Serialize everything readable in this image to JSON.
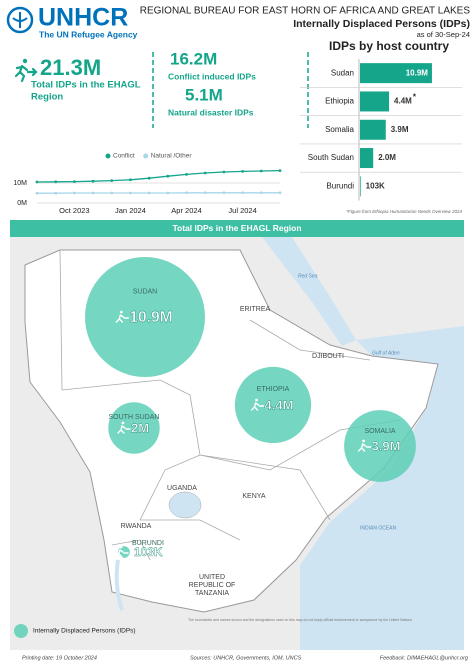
{
  "header": {
    "org": "UNHCR",
    "tagline": "The UN Refugee Agency",
    "bureau": "REGIONAL BUREAU FOR EAST HORN OF AFRICA AND GREAT LAKES",
    "title": "Internally Displaced Persons (IDPs)",
    "date": "as of 30-Sep-24"
  },
  "kpis": {
    "total": {
      "value": "21.3M",
      "label_lines": [
        "Total IDPs in  the EHAGL",
        "Region"
      ]
    },
    "conflict": {
      "value": "16.2M",
      "label": "Conflict induced IDPs"
    },
    "natural": {
      "value": "5.1M",
      "label": "Natural disaster IDPs"
    }
  },
  "chart_data": [
    {
      "type": "line",
      "categories": [
        null,
        null,
        "Oct 2023",
        null,
        null,
        "Jan 2024",
        null,
        null,
        "Apr 2024",
        null,
        null,
        "Jul 2024",
        null,
        null
      ],
      "series": [
        {
          "name": "Conflict",
          "color": "#14a58a",
          "values": [
            10.5,
            10.6,
            10.7,
            10.9,
            11.2,
            11.6,
            12.4,
            13.4,
            14.3,
            15.0,
            15.5,
            15.8,
            16.0,
            16.2
          ]
        },
        {
          "name": "Natural /Other",
          "color": "#a9d6e8",
          "values": [
            4.9,
            4.9,
            5.0,
            5.0,
            5.0,
            5.0,
            5.0,
            5.0,
            5.1,
            5.1,
            5.1,
            5.1,
            5.1,
            5.1
          ]
        }
      ],
      "ylim": [
        0,
        20
      ],
      "yticks": [
        {
          "value": 0,
          "label": "0M"
        },
        {
          "value": 10,
          "label": "10M"
        }
      ],
      "grid": true,
      "legend": "top"
    },
    {
      "type": "hbar",
      "title": "IDPs by host country",
      "categories": [
        "Sudan",
        "Ethiopia",
        "Somalia",
        "South Sudan",
        "Burundi"
      ],
      "values": [
        10.9,
        4.4,
        3.9,
        2.0,
        0.103
      ],
      "value_labels": [
        "10.9M",
        "4.4M",
        "3.9M",
        "2.0M",
        "103K"
      ],
      "color": "#14a58a",
      "footnote_marker": "*",
      "footnote": "*Figure from Ethiopia Humanitarian Needs Overview 2024"
    }
  ],
  "map": {
    "title": "Total IDPs in the EHAGL Region",
    "bubbles": [
      {
        "name": "SUDAN",
        "value": 10.9,
        "value_label": "10.9M"
      },
      {
        "name": "SOUTH SUDAN",
        "value": 2,
        "value_label": "2M"
      },
      {
        "name": "ETHIOPIA",
        "value": 4.4,
        "value_label": "4.4M"
      },
      {
        "name": "SOMALIA",
        "value": 3.9,
        "value_label": "3.9M"
      },
      {
        "name": "BURUNDI",
        "value": 0.103,
        "value_label": "103K"
      }
    ],
    "places": {
      "eritrea": "ERITREA",
      "djibouti": "DJIBOUTI",
      "uganda": "UGANDA",
      "kenya": "KENYA",
      "rwanda": "RWANDA",
      "tanzania_lines": [
        "UNITED",
        "REPUBLIC OF",
        "TANZANIA"
      ],
      "red_sea": "Red Sea",
      "gulf": "Gulf of Aden",
      "ocean": "INDIAN OCEAN"
    },
    "legend": "Internally Displaced Persons (IDPs)",
    "disclaimer": "The boundaries and names shown and the designations used on this map do not imply official endorsement or acceptance by the United Nations"
  },
  "footer": {
    "printed": "Printing date: 19 October 2024",
    "sources": "Sources: UNHCR, Governments, IOM, UNCS",
    "feedback": "Feedback: DIMAEHAGL@unhcr.org"
  }
}
